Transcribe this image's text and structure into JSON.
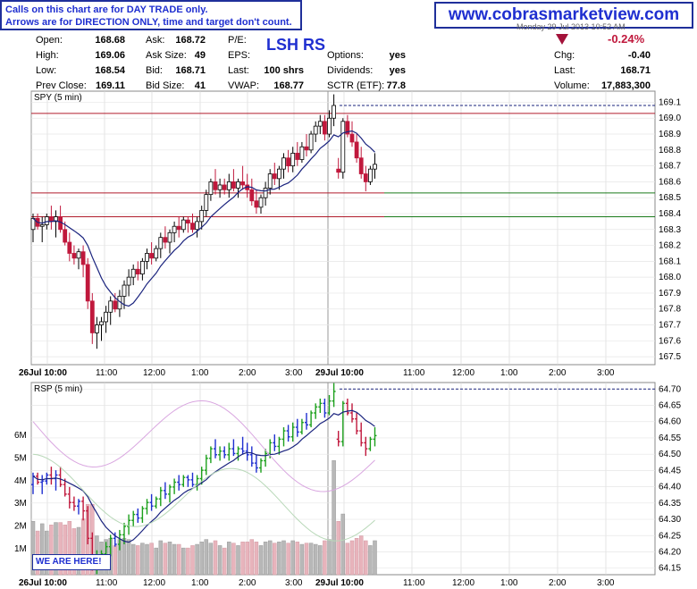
{
  "notice": {
    "line1": "Calls on this chart are for DAY TRADE only.",
    "line2": "Arrows are for DIRECTION ONLY, time and target don't count."
  },
  "website": "www.cobrasmarketview.com",
  "header_datetime": "Monday 29 Jul 2013 10:52 AM",
  "quote": {
    "open_label": "Open:",
    "open": "168.68",
    "high_label": "High:",
    "high": "169.06",
    "low_label": "Low:",
    "low": "168.54",
    "prev_label": "Prev Close:",
    "prev": "169.11",
    "ask_label": "Ask:",
    "ask": "168.72",
    "asksize_label": "Ask Size:",
    "asksize": "49",
    "bid_label": "Bid:",
    "bid": "168.71",
    "bidsize_label": "Bid Size:",
    "bidsize": "41",
    "pe_label": "P/E:",
    "pe": "",
    "eps_label": "EPS:",
    "eps": "",
    "last_label": "Last:",
    "last": "100 shrs",
    "vwap_label": "VWAP:",
    "vwap": "168.77",
    "options_label": "Options:",
    "options": "yes",
    "dividends_label": "Dividends:",
    "dividends": "yes",
    "sctr_label": "SCTR (ETF):",
    "sctr": "77.8",
    "chg_label": "Chg:",
    "chg": "-0.40",
    "last2_label": "Last:",
    "last2": "168.71",
    "volume_label": "Volume:",
    "volume": "17,883,300",
    "chg_pct": "-0.24%"
  },
  "annotation": "LSH RS",
  "we_are_here": "WE ARE HERE!",
  "colors": {
    "up": "#000000",
    "down": "#c0183c",
    "ma": "#1a237e",
    "support": "#1a7a1a",
    "resistance": "#b01c2c",
    "rsp_up": "#1ca01c",
    "rsp_flat": "#1f2fd0"
  },
  "chart_data": [
    {
      "type": "candlestick",
      "title": "SPY (5 min)",
      "y_ticks": [
        "169.1",
        "169.0",
        "168.9",
        "168.8",
        "168.7",
        "168.6",
        "168.5",
        "168.4",
        "168.3",
        "168.2",
        "168.1",
        "168.0",
        "167.9",
        "167.8",
        "167.7",
        "167.6",
        "167.5"
      ],
      "ylim": [
        167.45,
        169.17
      ],
      "x_ticks": [
        "26Jul 10:00",
        "11:00",
        "12:00",
        "1:00",
        "2:00",
        "3:00",
        "29Jul 10:00",
        "11:00",
        "12:00",
        "1:00",
        "2:00",
        "3:00"
      ],
      "horizontal_lines": [
        {
          "value": 169.03,
          "color": "#b01c2c",
          "style": "solid"
        },
        {
          "value": 168.53,
          "color": "#1a7a1a",
          "style": "solid"
        },
        {
          "value": 168.53,
          "color": "#b01c2c",
          "style": "solid",
          "extent": "left"
        },
        {
          "value": 168.38,
          "color": "#1a7a1a",
          "style": "solid"
        },
        {
          "value": 168.38,
          "color": "#b01c2c",
          "style": "solid",
          "extent": "left"
        },
        {
          "value": 169.08,
          "color": "#1a237e",
          "style": "dashed"
        }
      ],
      "candles": [
        [
          168.3,
          168.4,
          168.22,
          168.37
        ],
        [
          168.37,
          168.4,
          168.3,
          168.32
        ],
        [
          168.32,
          168.38,
          168.22,
          168.33
        ],
        [
          168.33,
          168.4,
          168.3,
          168.38
        ],
        [
          168.38,
          168.45,
          168.3,
          168.35
        ],
        [
          168.35,
          168.42,
          168.25,
          168.38
        ],
        [
          168.38,
          168.45,
          168.28,
          168.3
        ],
        [
          168.3,
          168.35,
          168.2,
          168.22
        ],
        [
          168.22,
          168.28,
          168.1,
          168.15
        ],
        [
          168.15,
          168.2,
          168.08,
          168.12
        ],
        [
          168.12,
          168.18,
          168.05,
          168.16
        ],
        [
          168.16,
          168.2,
          168.0,
          168.08
        ],
        [
          168.08,
          168.12,
          167.8,
          167.85
        ],
        [
          167.85,
          167.9,
          167.58,
          167.65
        ],
        [
          167.65,
          167.75,
          167.55,
          167.7
        ],
        [
          167.7,
          167.75,
          167.6,
          167.72
        ],
        [
          167.72,
          167.82,
          167.65,
          167.78
        ],
        [
          167.78,
          167.88,
          167.7,
          167.85
        ],
        [
          167.85,
          167.9,
          167.78,
          167.8
        ],
        [
          167.8,
          167.92,
          167.75,
          167.88
        ],
        [
          167.88,
          167.98,
          167.8,
          167.95
        ],
        [
          167.95,
          168.05,
          167.88,
          168.0
        ],
        [
          168.0,
          168.08,
          167.95,
          168.05
        ],
        [
          168.05,
          168.1,
          167.98,
          168.02
        ],
        [
          168.02,
          168.12,
          167.98,
          168.1
        ],
        [
          168.1,
          168.18,
          168.05,
          168.15
        ],
        [
          168.15,
          168.22,
          168.08,
          168.12
        ],
        [
          168.12,
          168.2,
          168.1,
          168.18
        ],
        [
          168.18,
          168.28,
          168.12,
          168.25
        ],
        [
          168.25,
          168.32,
          168.18,
          168.22
        ],
        [
          168.22,
          168.3,
          168.15,
          168.28
        ],
        [
          168.28,
          168.35,
          168.22,
          168.32
        ],
        [
          168.32,
          168.38,
          168.25,
          168.3
        ],
        [
          168.3,
          168.38,
          168.28,
          168.36
        ],
        [
          168.36,
          168.38,
          168.28,
          168.34
        ],
        [
          168.34,
          168.4,
          168.28,
          168.3
        ],
        [
          168.3,
          168.38,
          168.25,
          168.35
        ],
        [
          168.35,
          168.45,
          168.3,
          168.42
        ],
        [
          168.42,
          168.55,
          168.38,
          168.52
        ],
        [
          168.52,
          168.62,
          168.48,
          168.6
        ],
        [
          168.6,
          168.68,
          168.52,
          168.55
        ],
        [
          168.55,
          168.62,
          168.5,
          168.58
        ],
        [
          168.58,
          168.62,
          168.52,
          168.55
        ],
        [
          168.55,
          168.65,
          168.5,
          168.6
        ],
        [
          168.6,
          168.68,
          168.54,
          168.56
        ],
        [
          168.56,
          168.62,
          168.5,
          168.6
        ],
        [
          168.6,
          168.7,
          168.55,
          168.58
        ],
        [
          168.58,
          168.65,
          168.5,
          168.55
        ],
        [
          168.55,
          168.62,
          168.45,
          168.48
        ],
        [
          168.48,
          168.55,
          168.4,
          168.44
        ],
        [
          168.44,
          168.52,
          168.4,
          168.5
        ],
        [
          168.5,
          168.6,
          168.45,
          168.56
        ],
        [
          168.56,
          168.68,
          168.52,
          168.65
        ],
        [
          168.65,
          168.72,
          168.58,
          168.62
        ],
        [
          168.62,
          168.7,
          168.55,
          168.68
        ],
        [
          168.68,
          168.78,
          168.62,
          168.75
        ],
        [
          168.75,
          168.8,
          168.66,
          168.7
        ],
        [
          168.7,
          168.82,
          168.66,
          168.78
        ],
        [
          168.78,
          168.85,
          168.7,
          168.74
        ],
        [
          168.74,
          168.85,
          168.72,
          168.82
        ],
        [
          168.82,
          168.9,
          168.76,
          168.8
        ],
        [
          168.8,
          168.92,
          168.78,
          168.9
        ],
        [
          168.9,
          168.98,
          168.85,
          168.95
        ],
        [
          168.95,
          169.02,
          168.9,
          168.98
        ],
        [
          168.98,
          169.02,
          168.86,
          168.9
        ],
        [
          168.9,
          169.05,
          168.88,
          169.0
        ],
        [
          169.0,
          169.15,
          168.95,
          169.08
        ],
        [
          168.68,
          168.75,
          168.62,
          168.66
        ],
        [
          168.66,
          169.0,
          168.62,
          168.98
        ],
        [
          168.98,
          169.02,
          168.88,
          168.9
        ],
        [
          168.9,
          168.98,
          168.82,
          168.85
        ],
        [
          168.85,
          168.9,
          168.72,
          168.75
        ],
        [
          168.75,
          168.82,
          168.62,
          168.65
        ],
        [
          168.65,
          168.7,
          168.54,
          168.6
        ],
        [
          168.6,
          168.7,
          168.58,
          168.68
        ],
        [
          168.68,
          168.78,
          168.62,
          168.71
        ]
      ]
    },
    {
      "type": "line",
      "title": "RSP (5 min)",
      "y_ticks": [
        "64.70",
        "64.65",
        "64.60",
        "64.55",
        "64.50",
        "64.45",
        "64.40",
        "64.35",
        "64.30",
        "64.25",
        "64.20",
        "64.15"
      ],
      "ylim": [
        64.13,
        64.72
      ],
      "volume_ticks": [
        "6M",
        "5M",
        "4M",
        "3M",
        "2M",
        "1M"
      ],
      "dashed_level": 64.7
    }
  ]
}
